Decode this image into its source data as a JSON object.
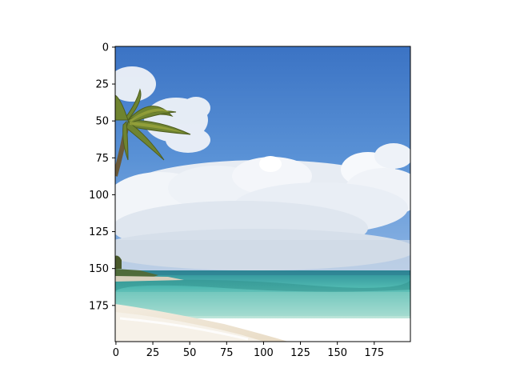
{
  "image": {
    "subject": "tropical beach photo",
    "x_ticks": [
      "0",
      "25",
      "50",
      "75",
      "100",
      "125",
      "150",
      "175"
    ],
    "y_ticks": [
      "0",
      "25",
      "50",
      "75",
      "100",
      "125",
      "150",
      "175"
    ],
    "x_range": [
      0,
      199
    ],
    "y_range": [
      0,
      199
    ],
    "colors": {
      "sky_top": "#3f78c8",
      "sky_mid": "#5f94d6",
      "cloud": "#f1f4f8",
      "sea_deep": "#3aa6a6",
      "sea_shallow": "#a7ddd2",
      "sand": "#efe6d8",
      "palm": "#6b7e2a",
      "axis": "#000000"
    }
  }
}
